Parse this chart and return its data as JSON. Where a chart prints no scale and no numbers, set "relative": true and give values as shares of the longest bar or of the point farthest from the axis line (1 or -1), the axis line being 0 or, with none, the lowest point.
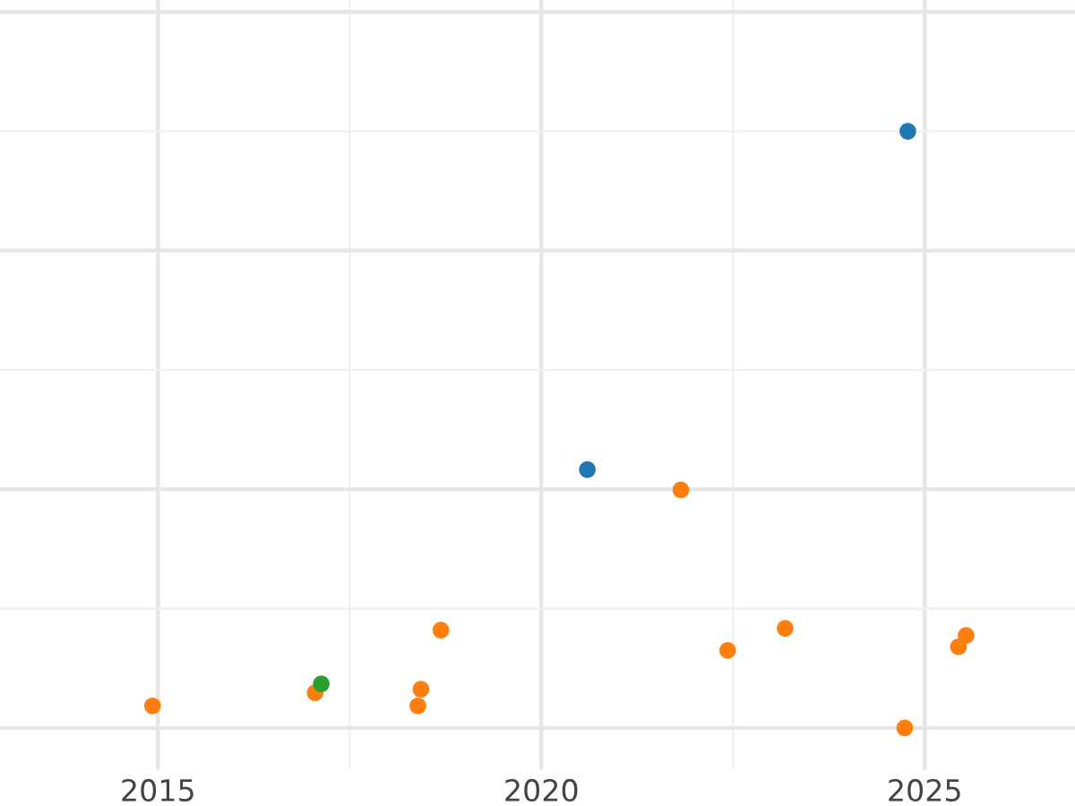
{
  "chart_data": {
    "type": "scatter",
    "relative": true,
    "grid": true,
    "marker": "circle",
    "xlim": [
      2012.94,
      2026.96
    ],
    "xticks": [
      2015,
      2020,
      2025
    ],
    "series": [
      {
        "color": "#1f77b4",
        "x": [
          2020.6,
          2024.78
        ],
        "values": [
          0.433,
          1.0
        ]
      },
      {
        "color": "#ff7f0e",
        "x": [
          2014.93,
          2017.05,
          2018.39,
          2018.43,
          2018.69,
          2021.82,
          2022.43,
          2023.18,
          2024.74,
          2025.44,
          2025.54
        ],
        "values": [
          0.037,
          0.059,
          0.037,
          0.065,
          0.164,
          0.399,
          0.13,
          0.167,
          0.0,
          0.136,
          0.155
        ]
      },
      {
        "color": "#2ca02c",
        "x": [
          2017.13
        ],
        "values": [
          0.074
        ]
      }
    ]
  }
}
